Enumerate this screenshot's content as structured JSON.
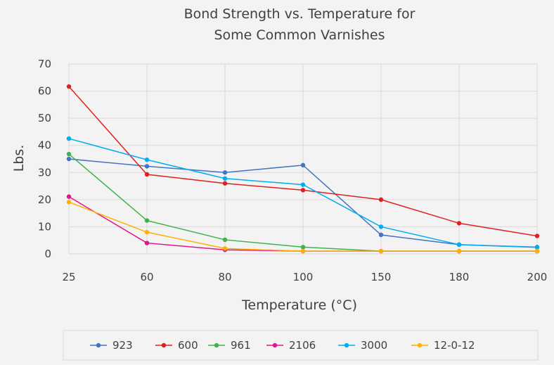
{
  "chart_data": {
    "type": "line",
    "title_lines": [
      "Bond Strength vs. Temperature for",
      "Some Common Varnishes"
    ],
    "xlabel": "Temperature (°C)",
    "ylabel": "Lbs.",
    "categories": [
      "25",
      "60",
      "80",
      "100",
      "150",
      "180",
      "200"
    ],
    "ylim": [
      0,
      70
    ],
    "yticks": [
      0,
      10,
      20,
      30,
      40,
      50,
      60,
      70
    ],
    "grid": true,
    "legend_position": "bottom",
    "series": [
      {
        "name": "923",
        "color": "#4472c4",
        "values": [
          35,
          32.3,
          30,
          32.7,
          7,
          3.4,
          2.5
        ]
      },
      {
        "name": "600",
        "color": "#e02020",
        "values": [
          61.7,
          29.3,
          26,
          23.5,
          20,
          11.3,
          6.6
        ]
      },
      {
        "name": "961",
        "color": "#3cb44b",
        "values": [
          36.8,
          12.3,
          5.2,
          2.5,
          1,
          1,
          1
        ]
      },
      {
        "name": "2106",
        "color": "#e4158a",
        "values": [
          21.1,
          4,
          1.5,
          1,
          1,
          1,
          1
        ]
      },
      {
        "name": "3000",
        "color": "#00aeef",
        "values": [
          42.5,
          34.7,
          27.8,
          25.5,
          10,
          3.4,
          2.4
        ]
      },
      {
        "name": "12-0-12",
        "color": "#ffb000",
        "values": [
          19.1,
          8,
          2,
          1,
          1,
          1,
          1
        ]
      }
    ]
  }
}
